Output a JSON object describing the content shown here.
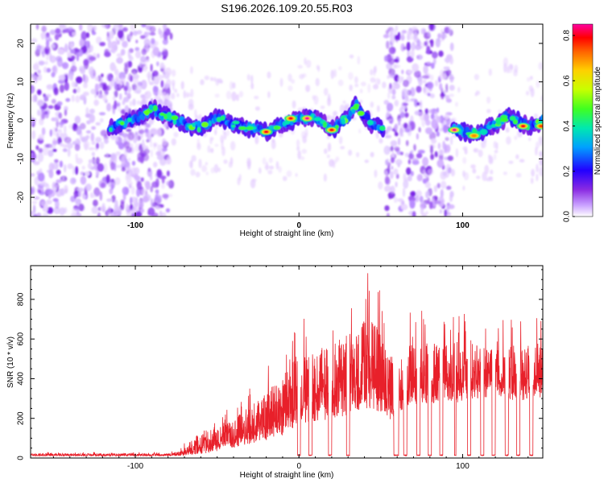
{
  "figure_title": "S196.2026.109.20.55.R03",
  "colors": {
    "snr_line": "#e8202a",
    "frame": "#000000",
    "background": "#ffffff"
  },
  "chart_data": [
    {
      "type": "heatmap",
      "title": "",
      "xlabel": "Height of straight line (km)",
      "ylabel": "Frequency (Hz)",
      "xlim": [
        -164,
        149
      ],
      "ylim": [
        -25,
        25
      ],
      "xticks": [
        -100,
        0,
        100
      ],
      "xtick_labels": [
        "-100",
        "0",
        "100"
      ],
      "yticks": [
        -20,
        -10,
        0,
        10,
        20
      ],
      "ytick_labels": [
        "-20",
        "-10",
        "0",
        "10",
        "20"
      ],
      "colorbar": {
        "label": "Normalized spectral amplitude",
        "range": [
          0,
          0.85
        ],
        "ticks": [
          0.0,
          0.2,
          0.4,
          0.6,
          0.8
        ],
        "tick_labels": [
          "0.0",
          "0.2",
          "0.4",
          "0.6",
          "0.8"
        ]
      },
      "noise_segments": [
        [
          -164,
          -78
        ],
        [
          53,
          94
        ]
      ],
      "signal_segments": [
        [
          -116,
          52
        ],
        [
          94,
          149
        ]
      ],
      "ridge": [
        {
          "x": -116,
          "f": -2
        },
        {
          "x": -100,
          "f": 0.5
        },
        {
          "x": -90,
          "f": 3
        },
        {
          "x": -80,
          "f": 1
        },
        {
          "x": -70,
          "f": -1
        },
        {
          "x": -60,
          "f": -2
        },
        {
          "x": -50,
          "f": 1
        },
        {
          "x": -40,
          "f": -1
        },
        {
          "x": -30,
          "f": -2
        },
        {
          "x": -20,
          "f": -3
        },
        {
          "x": -10,
          "f": -1
        },
        {
          "x": 0,
          "f": 0.5
        },
        {
          "x": 10,
          "f": 1
        },
        {
          "x": 20,
          "f": -2.5
        },
        {
          "x": 30,
          "f": 1
        },
        {
          "x": 35,
          "f": 4
        },
        {
          "x": 40,
          "f": 1
        },
        {
          "x": 45,
          "f": -1
        },
        {
          "x": 52,
          "f": -2.5
        },
        {
          "x": 94,
          "f": -2
        },
        {
          "x": 100,
          "f": -3
        },
        {
          "x": 110,
          "f": -3.5
        },
        {
          "x": 120,
          "f": -1
        },
        {
          "x": 127,
          "f": 1
        },
        {
          "x": 135,
          "f": -0.5
        },
        {
          "x": 142,
          "f": -1.5
        },
        {
          "x": 149,
          "f": 0
        }
      ],
      "peaks": [
        {
          "x": -20,
          "f": -3,
          "amp": 0.8
        },
        {
          "x": -5,
          "f": 0.5,
          "amp": 0.8
        },
        {
          "x": 5,
          "f": 0.5,
          "amp": 0.85
        },
        {
          "x": 20,
          "f": -2.5,
          "amp": 0.8
        },
        {
          "x": 95,
          "f": -2.5,
          "amp": 0.85
        },
        {
          "x": 107,
          "f": -4,
          "amp": 0.7
        },
        {
          "x": 137,
          "f": -1.5,
          "amp": 0.8
        },
        {
          "x": 148,
          "f": -1.5,
          "amp": 0.75
        }
      ]
    },
    {
      "type": "line",
      "title": "",
      "xlabel": "Height of straight line (km)",
      "ylabel": "SNR (10 * v/v)",
      "xlim": [
        -164,
        149
      ],
      "ylim": [
        0,
        970
      ],
      "xticks": [
        -100,
        0,
        100
      ],
      "xtick_labels": [
        "-100",
        "0",
        "100"
      ],
      "yticks": [
        0,
        200,
        400,
        600,
        800
      ],
      "ytick_labels": [
        "0",
        "200",
        "400",
        "600",
        "800"
      ],
      "series": [
        {
          "name": "SNR",
          "envelope": [
            {
              "x": -164,
              "base": 15,
              "amp": 15
            },
            {
              "x": -80,
              "base": 15,
              "amp": 15
            },
            {
              "x": -72,
              "base": 20,
              "amp": 30
            },
            {
              "x": -60,
              "base": 60,
              "amp": 140
            },
            {
              "x": -40,
              "base": 100,
              "amp": 160
            },
            {
              "x": -20,
              "base": 180,
              "amp": 300
            },
            {
              "x": -10,
              "base": 220,
              "amp": 350
            },
            {
              "x": 0,
              "base": 300,
              "amp": 430
            },
            {
              "x": 20,
              "base": 330,
              "amp": 450
            },
            {
              "x": 35,
              "base": 380,
              "amp": 500
            },
            {
              "x": 45,
              "base": 420,
              "amp": 560
            },
            {
              "x": 55,
              "base": 300,
              "amp": 400
            },
            {
              "x": 70,
              "base": 380,
              "amp": 360
            },
            {
              "x": 90,
              "base": 380,
              "amp": 380
            },
            {
              "x": 110,
              "base": 400,
              "amp": 320
            },
            {
              "x": 130,
              "base": 380,
              "amp": 320
            },
            {
              "x": 149,
              "base": 400,
              "amp": 320
            }
          ],
          "dropouts": [
            [
              -1,
              1
            ],
            [
              6,
              8
            ],
            [
              18,
              20
            ],
            [
              29,
              31
            ],
            [
              58,
              61
            ],
            [
              64,
              66
            ],
            [
              72,
              74
            ],
            [
              79,
              81
            ],
            [
              86,
              88
            ],
            [
              95,
              96
            ],
            [
              103,
              105
            ],
            [
              111,
              113
            ],
            [
              118,
              120
            ],
            [
              126,
              128
            ],
            [
              133,
              135
            ],
            [
              141,
              143
            ]
          ],
          "dropout_level": 12
        }
      ]
    }
  ]
}
